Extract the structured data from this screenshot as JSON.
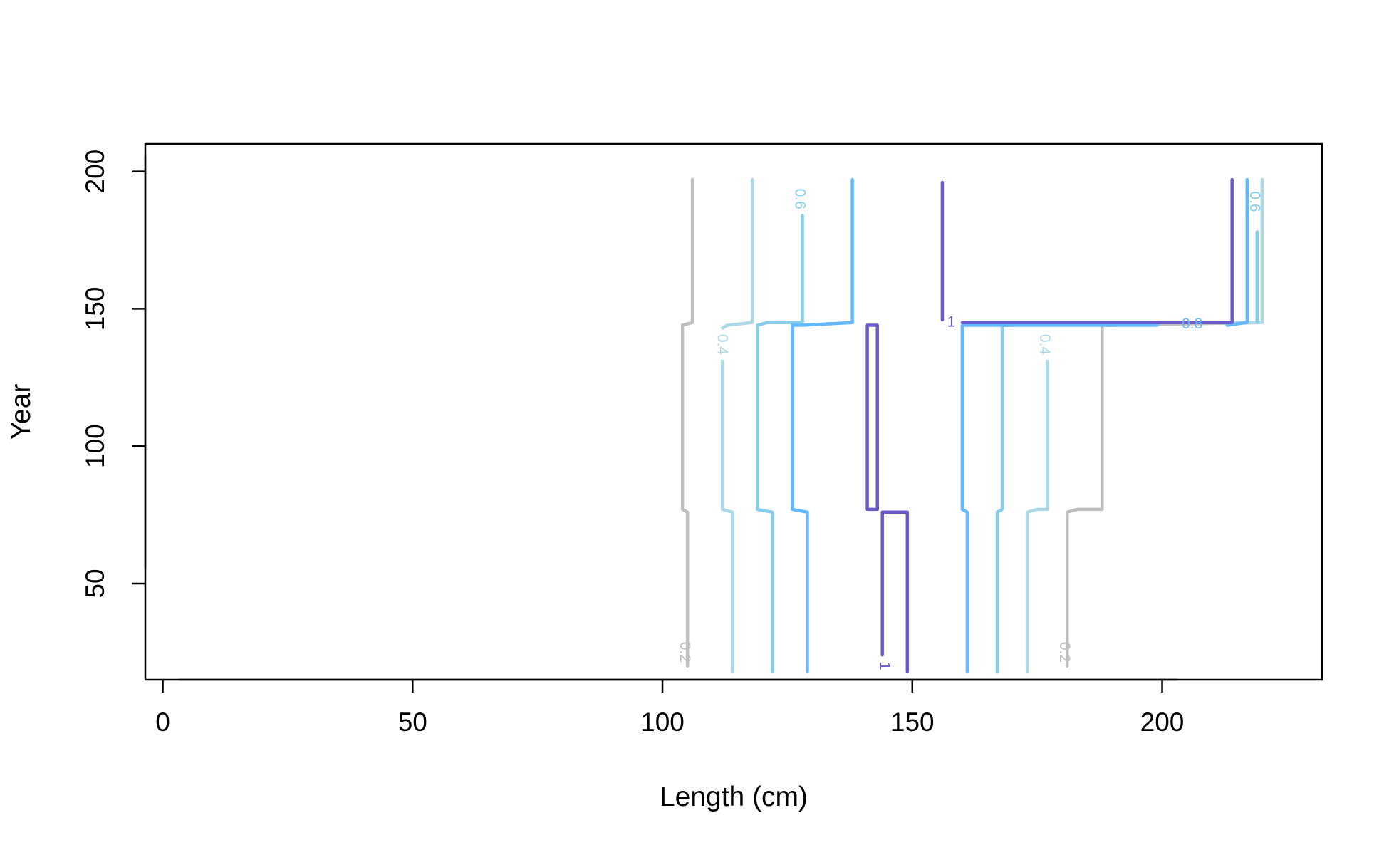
{
  "chart_data": {
    "type": "contour",
    "title": "",
    "xlabel": "Length (cm)",
    "ylabel": "Year",
    "xlim": [
      -3.5,
      232
    ],
    "ylim": [
      15,
      210
    ],
    "xticks": [
      0,
      50,
      100,
      150,
      200
    ],
    "yticks": [
      50,
      100,
      150,
      200
    ],
    "x_tick_labels": [
      "0",
      "50",
      "100",
      "150",
      "200"
    ],
    "y_tick_labels": [
      "50",
      "100",
      "150",
      "200"
    ],
    "grid": false,
    "legend": "none",
    "level_colors": {
      "0.2": "#bebebe",
      "0.4": "#add8e6",
      "0.6": "#87ceeb",
      "0.8": "#63b8ff",
      "1": "#6a5acd"
    },
    "contours": [
      {
        "level": "0.2",
        "points": [
          [
            106,
            197
          ],
          [
            106,
            145
          ],
          [
            104,
            144
          ],
          [
            104,
            77
          ],
          [
            105,
            76
          ],
          [
            105,
            20
          ]
        ]
      },
      {
        "level": "0.2",
        "points": [
          [
            181,
            20
          ],
          [
            181,
            76
          ],
          [
            183,
            77
          ],
          [
            188,
            77
          ],
          [
            188,
            144
          ],
          [
            220,
            145
          ]
        ]
      },
      {
        "level": "0.4",
        "points": [
          [
            118,
            197
          ],
          [
            118,
            145
          ],
          [
            113,
            144
          ],
          [
            112,
            143
          ]
        ]
      },
      {
        "level": "0.4",
        "points": [
          [
            112,
            131
          ],
          [
            112,
            77
          ],
          [
            114,
            76
          ],
          [
            114,
            18
          ]
        ]
      },
      {
        "level": "0.4",
        "points": [
          [
            173,
            18
          ],
          [
            173,
            76
          ],
          [
            175,
            77
          ],
          [
            177,
            77
          ],
          [
            177,
            131
          ]
        ]
      },
      {
        "level": "0.4",
        "points": [
          [
            220,
            197
          ],
          [
            220,
            145
          ],
          [
            200,
            145
          ]
        ]
      },
      {
        "level": "0.6",
        "points": [
          [
            128,
            184
          ],
          [
            128,
            145
          ],
          [
            121,
            145
          ],
          [
            119,
            144
          ],
          [
            119,
            77
          ],
          [
            122,
            76
          ],
          [
            122,
            18
          ]
        ]
      },
      {
        "level": "0.6",
        "points": [
          [
            167,
            18
          ],
          [
            167,
            76
          ],
          [
            168,
            77
          ],
          [
            168,
            144
          ],
          [
            200,
            145
          ]
        ]
      },
      {
        "level": "0.6",
        "points": [
          [
            219,
            178
          ],
          [
            219,
            145
          ]
        ]
      },
      {
        "level": "0.8",
        "points": [
          [
            138,
            197
          ],
          [
            138,
            145
          ],
          [
            128,
            144
          ],
          [
            126,
            144
          ],
          [
            126,
            77
          ],
          [
            129,
            76
          ],
          [
            129,
            18
          ]
        ]
      },
      {
        "level": "0.8",
        "points": [
          [
            161,
            18
          ],
          [
            161,
            76
          ],
          [
            160,
            77
          ],
          [
            160,
            144
          ],
          [
            199,
            144
          ]
        ]
      },
      {
        "level": "0.8",
        "points": [
          [
            213,
            144
          ],
          [
            217,
            145
          ],
          [
            217,
            197
          ]
        ]
      },
      {
        "level": "1",
        "points": [
          [
            141,
            77
          ],
          [
            143,
            77
          ],
          [
            143,
            144
          ],
          [
            141,
            144
          ],
          [
            141,
            77
          ]
        ]
      },
      {
        "level": "1",
        "points": [
          [
            144,
            24
          ],
          [
            144,
            76
          ],
          [
            149,
            76
          ],
          [
            149,
            18
          ]
        ]
      },
      {
        "level": "1",
        "points": [
          [
            156,
            196
          ],
          [
            156,
            146
          ]
        ]
      },
      {
        "level": "1",
        "points": [
          [
            160,
            145
          ],
          [
            214,
            145
          ],
          [
            214,
            197
          ]
        ]
      }
    ],
    "labels": [
      {
        "text": "0.2",
        "level": "0.2",
        "x": 104.5,
        "y": 25,
        "angle": 90
      },
      {
        "text": "0.2",
        "level": "0.2",
        "x": 180.5,
        "y": 25,
        "angle": 90
      },
      {
        "text": "0.4",
        "level": "0.4",
        "x": 112,
        "y": 137,
        "angle": 90
      },
      {
        "text": "0.4",
        "level": "0.4",
        "x": 176.5,
        "y": 137,
        "angle": 90
      },
      {
        "text": "0.6",
        "level": "0.6",
        "x": 127.5,
        "y": 190,
        "angle": 90
      },
      {
        "text": "0.6",
        "level": "0.6",
        "x": 218.5,
        "y": 189,
        "angle": 90
      },
      {
        "text": "0.8",
        "level": "0.8",
        "x": 206,
        "y": 144.5,
        "angle": 0
      },
      {
        "text": "1",
        "level": "1",
        "x": 144.5,
        "y": 20,
        "angle": 90
      },
      {
        "text": "1",
        "level": "1",
        "x": 157.8,
        "y": 145.2,
        "angle": 0
      }
    ]
  }
}
